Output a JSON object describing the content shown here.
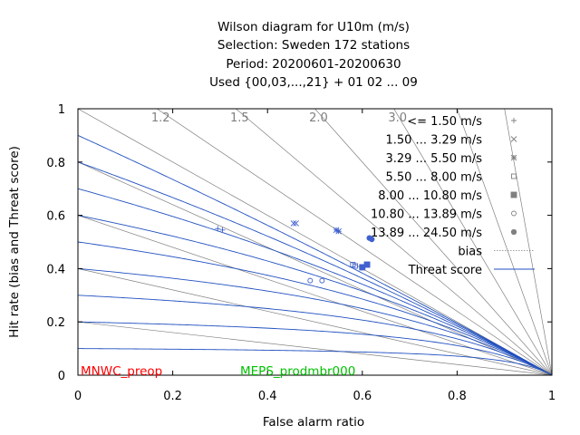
{
  "chart_data": {
    "type": "scatter",
    "title_lines": [
      "Wilson diagram  for U10m (m/s)",
      "Selection: Sweden    172 stations",
      "Period: 20200601-20200630",
      "Used {00,03,...,21} + 01 02 ... 09"
    ],
    "xlabel": "False alarm ratio",
    "ylabel": "Hit rate (bias and Threat score)",
    "xlim": [
      0,
      1
    ],
    "ylim": [
      0,
      1
    ],
    "xticks": [
      "0",
      "0.2",
      "0.4",
      "0.6",
      "0.8",
      "1"
    ],
    "yticks": [
      "0",
      "0.2",
      "0.4",
      "0.6",
      "0.8",
      "1"
    ],
    "bias_lines": [
      {
        "value": 1.2,
        "label": "1.2"
      },
      {
        "value": 1.5,
        "label": "1.5"
      },
      {
        "value": 2.0,
        "label": "2.0"
      },
      {
        "value": 3.0,
        "label": "3.0"
      }
    ],
    "extra_bias_values": [
      0.2,
      0.4,
      0.6,
      0.8,
      1.0,
      5.0,
      10.0
    ],
    "threat_score_values": [
      0.1,
      0.2,
      0.3,
      0.4,
      0.5,
      0.6,
      0.7,
      0.8,
      0.9
    ],
    "legend": {
      "classes": [
        {
          "label": "<= 1.50 m/s",
          "marker": "plus"
        },
        {
          "label": "1.50 ... 3.29 m/s",
          "marker": "cross"
        },
        {
          "label": "3.29 ... 5.50 m/s",
          "marker": "star"
        },
        {
          "label": "5.50 ... 8.00 m/s",
          "marker": "open-square"
        },
        {
          "label": "8.00 ... 10.80 m/s",
          "marker": "filled-square"
        },
        {
          "label": "10.80 ... 13.89 m/s",
          "marker": "open-circle"
        },
        {
          "label": "13.89 ... 24.50 m/s",
          "marker": "filled-circle"
        }
      ],
      "bias_label": "bias",
      "threat_label": "Threat score"
    },
    "series": [
      {
        "name": "MNWC_preop",
        "color": "#ff0000",
        "points": [
          {
            "class": 0,
            "x": 0.305,
            "y": 0.545
          },
          {
            "class": 1,
            "x": 0.46,
            "y": 0.57
          },
          {
            "class": 2,
            "x": 0.55,
            "y": 0.54
          },
          {
            "class": 3,
            "x": 0.58,
            "y": 0.415
          },
          {
            "class": 4,
            "x": 0.6,
            "y": 0.405
          },
          {
            "class": 5,
            "x": 0.49,
            "y": 0.355
          },
          {
            "class": 6,
            "x": 0.62,
            "y": 0.51
          }
        ]
      },
      {
        "name": "MEPS_prodmbr000",
        "color": "#00c000",
        "points": [
          {
            "class": 0,
            "x": 0.295,
            "y": 0.55
          },
          {
            "class": 1,
            "x": 0.455,
            "y": 0.57
          },
          {
            "class": 2,
            "x": 0.545,
            "y": 0.545
          },
          {
            "class": 3,
            "x": 0.585,
            "y": 0.41
          },
          {
            "class": 4,
            "x": 0.61,
            "y": 0.415
          },
          {
            "class": 5,
            "x": 0.515,
            "y": 0.355
          },
          {
            "class": 6,
            "x": 0.615,
            "y": 0.515
          }
        ]
      }
    ]
  },
  "colors": {
    "threat_line": "#2050c0",
    "bias_line": "#808080",
    "marker": "#4060d0",
    "legend_marker": "#808080"
  }
}
